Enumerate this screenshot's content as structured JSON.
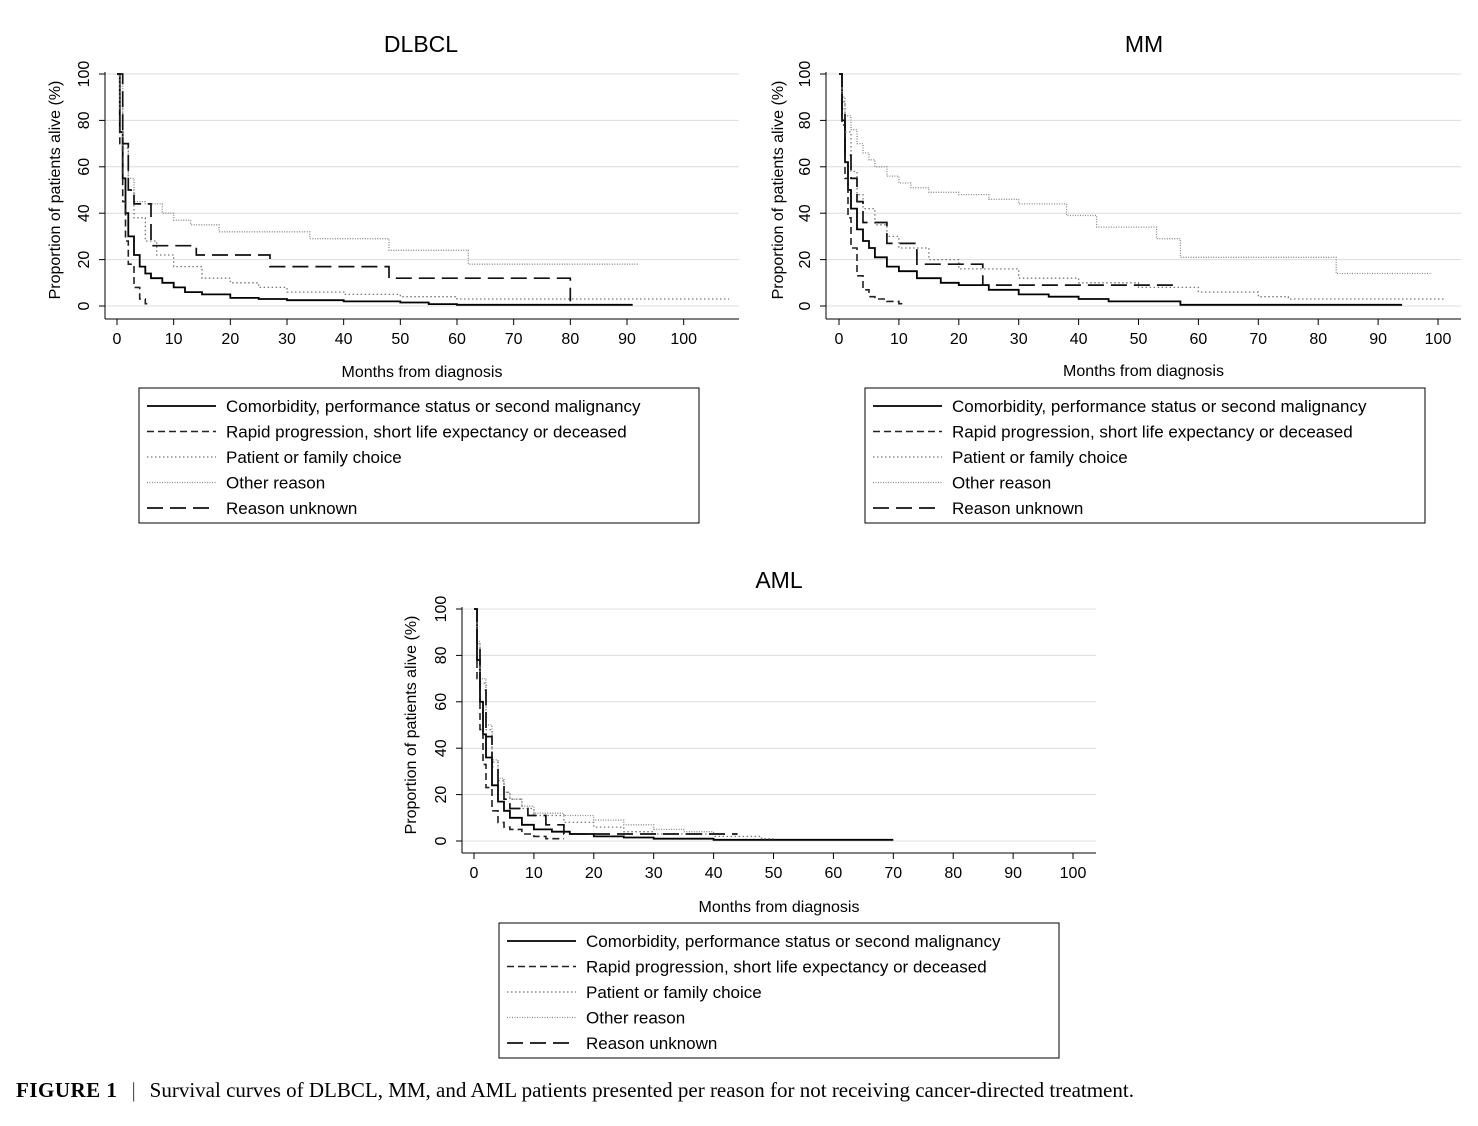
{
  "caption": {
    "label": "FIGURE 1",
    "text": "Survival curves of DLBCL, MM, and AML patients presented per reason for not receiving cancer-directed treatment."
  },
  "legend_entries": [
    "Comorbidity, performance status or second malignancy",
    "Rapid progression, short life expectancy or deceased",
    "Patient or family choice",
    "Other reason",
    "Reason unknown"
  ],
  "chart_data": [
    {
      "type": "line",
      "title": "DLBCL",
      "xlabel": "Months from diagnosis",
      "ylabel": "Proportion of patients alive (%)",
      "xlim": [
        0,
        108
      ],
      "ylim": [
        0,
        100
      ],
      "xticks": [
        0,
        10,
        20,
        30,
        40,
        50,
        60,
        70,
        80,
        90,
        100
      ],
      "yticks": [
        0,
        20,
        40,
        60,
        80,
        100
      ],
      "grid": true,
      "legend": "bottom",
      "series": [
        {
          "name": "Comorbidity, performance status or second malignancy",
          "x": [
            0,
            0.5,
            1,
            1.5,
            2,
            3,
            4,
            5,
            6,
            8,
            10,
            12,
            15,
            20,
            25,
            30,
            40,
            50,
            55,
            60,
            70,
            80,
            91
          ],
          "y": [
            100,
            75,
            55,
            40,
            30,
            22,
            17,
            14,
            12,
            10,
            8,
            6,
            5,
            3.5,
            3,
            2.5,
            2,
            1.5,
            0.8,
            0.5,
            0.5,
            0.5,
            0.5
          ]
        },
        {
          "name": "Rapid progression, short life expectancy or deceased",
          "x": [
            0,
            0.5,
            1,
            1.5,
            2,
            3,
            4,
            5,
            5.5
          ],
          "y": [
            100,
            70,
            45,
            28,
            18,
            8,
            3,
            1,
            0.5
          ]
        },
        {
          "name": "Patient or family choice",
          "x": [
            0,
            0.5,
            1,
            2,
            3,
            5,
            7,
            10,
            15,
            20,
            25,
            30,
            40,
            50,
            60,
            80,
            100,
            108
          ],
          "y": [
            100,
            85,
            68,
            50,
            38,
            28,
            22,
            17,
            12,
            10,
            8,
            6,
            5,
            4,
            3,
            3,
            3,
            3
          ]
        },
        {
          "name": "Other reason",
          "x": [
            0,
            1,
            2,
            3,
            5,
            8,
            10,
            13,
            18,
            25,
            34,
            45,
            48,
            62,
            70,
            80,
            92
          ],
          "y": [
            100,
            70,
            55,
            45,
            44,
            40,
            37,
            35,
            32,
            32,
            29,
            29,
            24,
            18,
            18,
            18,
            18
          ]
        },
        {
          "name": "Reason unknown",
          "x": [
            0,
            1,
            2,
            3,
            4,
            5,
            6,
            14,
            27,
            48,
            80,
            80
          ],
          "y": [
            100,
            70,
            50,
            44,
            44,
            44,
            26,
            22,
            17,
            12,
            12,
            2
          ]
        }
      ]
    },
    {
      "type": "line",
      "title": "MM",
      "xlabel": "Months from diagnosis",
      "ylabel": "Proportion of patients alive (%)",
      "xlim": [
        0,
        102
      ],
      "ylim": [
        0,
        100
      ],
      "xticks": [
        0,
        10,
        20,
        30,
        40,
        50,
        60,
        70,
        80,
        90,
        100
      ],
      "yticks": [
        0,
        20,
        40,
        60,
        80,
        100
      ],
      "grid": true,
      "legend": "bottom",
      "series": [
        {
          "name": "Comorbidity, performance status or second malignancy",
          "x": [
            0,
            0.5,
            1,
            1.5,
            2,
            3,
            4,
            5,
            6,
            8,
            10,
            13,
            17,
            20,
            25,
            30,
            35,
            40,
            45,
            50,
            55,
            57,
            70,
            94
          ],
          "y": [
            100,
            80,
            62,
            50,
            42,
            33,
            28,
            25,
            21,
            17,
            15,
            12,
            10,
            9,
            7,
            5,
            4,
            3,
            2,
            2,
            2,
            0.5,
            0.5,
            0.5
          ]
        },
        {
          "name": "Rapid progression, short life expectancy or deceased",
          "x": [
            0,
            0.5,
            1,
            1.5,
            2,
            3,
            4,
            5,
            6,
            8,
            10,
            11
          ],
          "y": [
            100,
            78,
            55,
            38,
            25,
            13,
            7,
            4,
            3,
            2,
            1,
            1
          ]
        },
        {
          "name": "Patient or family choice",
          "x": [
            0,
            0.5,
            1,
            2,
            3,
            4,
            6,
            8,
            10,
            15,
            20,
            30,
            40,
            50,
            60,
            70,
            75,
            85,
            101
          ],
          "y": [
            100,
            88,
            75,
            58,
            48,
            42,
            35,
            30,
            25,
            20,
            16,
            12,
            10,
            8,
            6,
            4,
            3,
            3,
            3
          ]
        },
        {
          "name": "Other reason",
          "x": [
            0,
            0.5,
            1,
            2,
            3,
            4,
            5,
            6,
            8,
            10,
            12,
            15,
            20,
            25,
            30,
            38,
            43,
            53,
            57,
            70,
            83,
            99
          ],
          "y": [
            100,
            90,
            82,
            76,
            70,
            66,
            63,
            60,
            56,
            53,
            51,
            49,
            48,
            46,
            44,
            39,
            34,
            29,
            21,
            21,
            14,
            14
          ]
        },
        {
          "name": "Reason unknown",
          "x": [
            0,
            0.5,
            1,
            2,
            3,
            4,
            5,
            8,
            13,
            24,
            56
          ],
          "y": [
            100,
            85,
            65,
            55,
            45,
            36,
            36,
            27,
            18,
            9,
            9
          ]
        }
      ]
    },
    {
      "type": "line",
      "title": "AML",
      "xlabel": "Months from diagnosis",
      "ylabel": "Proportion of patients alive (%)",
      "xlim": [
        0,
        102
      ],
      "ylim": [
        0,
        100
      ],
      "xticks": [
        0,
        10,
        20,
        30,
        40,
        50,
        60,
        70,
        80,
        90,
        100
      ],
      "yticks": [
        0,
        20,
        40,
        60,
        80,
        100
      ],
      "grid": true,
      "legend": "bottom",
      "series": [
        {
          "name": "Comorbidity, performance status or second malignancy",
          "x": [
            0,
            0.5,
            1,
            1.5,
            2,
            3,
            4,
            5,
            6,
            8,
            10,
            13,
            16,
            20,
            25,
            30,
            40,
            50,
            60,
            70
          ],
          "y": [
            100,
            78,
            60,
            46,
            36,
            24,
            17,
            13,
            10,
            7,
            5,
            4,
            3,
            2,
            1.5,
            1,
            0.5,
            0.5,
            0.5,
            0.5
          ]
        },
        {
          "name": "Rapid progression, short life expectancy or deceased",
          "x": [
            0,
            0.5,
            1,
            1.5,
            2,
            3,
            4,
            5,
            6,
            8,
            10,
            12,
            15
          ],
          "y": [
            100,
            70,
            48,
            33,
            23,
            13,
            8,
            6,
            5,
            3,
            2,
            1,
            1
          ]
        },
        {
          "name": "Patient or family choice",
          "x": [
            0,
            0.5,
            1,
            2,
            3,
            4,
            5,
            6,
            8,
            10,
            15,
            20,
            25,
            30,
            40,
            48,
            50
          ],
          "y": [
            100,
            85,
            68,
            48,
            34,
            26,
            21,
            18,
            14,
            11,
            8,
            6,
            4,
            3,
            2,
            1,
            1
          ]
        },
        {
          "name": "Other reason",
          "x": [
            0,
            0.5,
            1,
            2,
            3,
            4,
            5,
            6,
            8,
            10,
            15,
            20,
            25,
            30,
            35,
            40,
            41
          ],
          "y": [
            100,
            86,
            70,
            50,
            35,
            27,
            21,
            18,
            15,
            12,
            11,
            9,
            7,
            5,
            4,
            3,
            3
          ]
        },
        {
          "name": "Reason unknown",
          "x": [
            0,
            0.5,
            1,
            2,
            3,
            4,
            5,
            6,
            9,
            12,
            15,
            30,
            44
          ],
          "y": [
            100,
            85,
            65,
            45,
            32,
            24,
            18,
            14,
            11,
            7,
            3,
            3,
            3
          ]
        }
      ]
    }
  ]
}
